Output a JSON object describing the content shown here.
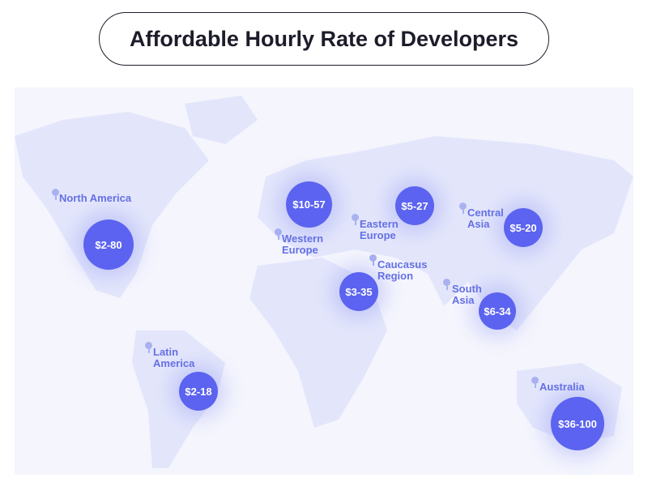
{
  "title": "Affordable Hourly Rate of Developers",
  "colors": {
    "bubble": "#5b63f0",
    "label": "#6570e4",
    "land": "#e3e6fb",
    "pin": "#a9b1f0"
  },
  "regions": [
    {
      "name": "North America",
      "rate": "$2-80"
    },
    {
      "name": "Western Europe",
      "rate": "$10-57"
    },
    {
      "name": "Eastern Europe",
      "rate": "$5-27"
    },
    {
      "name": "Central Asia",
      "rate": "$5-20"
    },
    {
      "name": "Caucasus Region",
      "rate": "$3-35"
    },
    {
      "name": "South Asia",
      "rate": "$6-34"
    },
    {
      "name": "Latin America",
      "rate": "$2-18"
    },
    {
      "name": "Australia",
      "rate": "$36-100"
    }
  ]
}
